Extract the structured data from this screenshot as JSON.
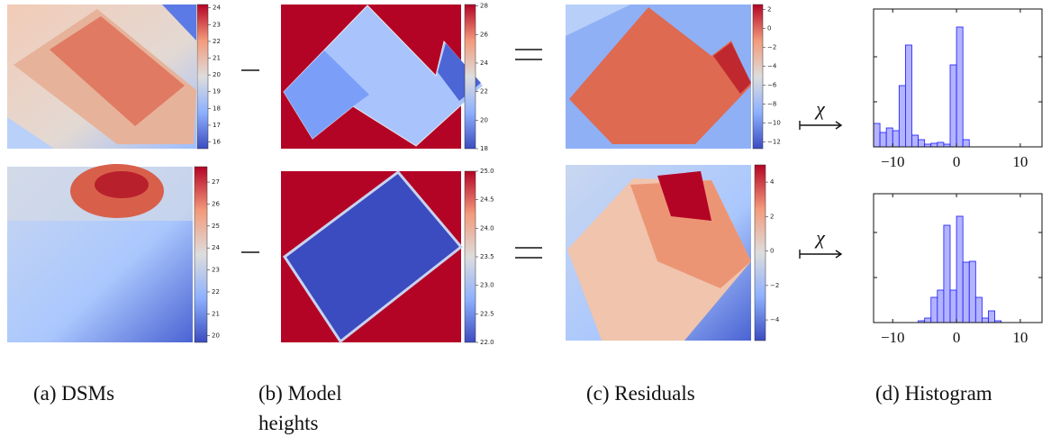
{
  "rows": [
    {
      "dsm_colorbar": {
        "lim": [
          15.6,
          24.2
        ],
        "ticks": [
          16,
          17,
          18,
          19,
          20,
          21,
          22,
          23,
          24
        ]
      },
      "model_colorbar": {
        "lim": [
          18,
          28.1
        ],
        "ticks": [
          18,
          20,
          22,
          24,
          26,
          28
        ]
      },
      "residual_colorbar": {
        "lim": [
          -12.7,
          2.5
        ],
        "ticks": [
          {
            "value": -12,
            "label": "−12"
          },
          {
            "value": -10,
            "label": "−10"
          },
          {
            "value": -8,
            "label": "−8"
          },
          {
            "value": -6,
            "label": "−6"
          },
          {
            "value": -4,
            "label": "−4"
          },
          {
            "value": -2,
            "label": "−2"
          },
          0,
          2
        ]
      },
      "histogram": {
        "type": "histogram",
        "color": "#b3b3ff",
        "edge_color": "#1a1aff",
        "bins": [
          -13,
          -12,
          -11,
          -10,
          -9,
          -8,
          -7,
          -6,
          -5,
          -4,
          -3,
          -2,
          -1,
          0,
          1,
          2
        ],
        "counts": [
          26,
          16,
          21,
          18,
          68,
          113,
          13,
          8,
          3,
          4,
          5,
          3,
          91,
          133,
          8
        ],
        "xlim": [
          -13,
          13.4
        ],
        "ylim": [
          0,
          153
        ],
        "xticks": [
          {
            "value": -10,
            "label": "−10"
          },
          0,
          10
        ],
        "yticks": [
          0,
          50,
          100
        ]
      }
    },
    {
      "dsm_colorbar": {
        "lim": [
          19.7,
          27.7
        ],
        "ticks": [
          20,
          21,
          22,
          23,
          24,
          25,
          26,
          27
        ]
      },
      "model_colorbar": {
        "lim": [
          22,
          25
        ],
        "ticks": [
          {
            "value": 22,
            "label": "22.0"
          },
          22.5,
          {
            "value": 23,
            "label": "23.0"
          },
          23.5,
          {
            "value": 24,
            "label": "24.0"
          },
          24.5,
          {
            "value": 25,
            "label": "25.0"
          }
        ]
      },
      "residual_colorbar": {
        "lim": [
          -5.2,
          5
        ],
        "ticks": [
          {
            "value": -4,
            "label": "−4"
          },
          {
            "value": -2,
            "label": "−2"
          },
          0,
          2,
          4
        ]
      },
      "histogram": {
        "type": "histogram",
        "color": "#b3b3ff",
        "edge_color": "#1a1aff",
        "bins": [
          -6,
          -5,
          -4,
          -3,
          -2,
          -1,
          0,
          1,
          2,
          3,
          4,
          5,
          6,
          7
        ],
        "counts": [
          2,
          5,
          28,
          36,
          108,
          36,
          118,
          67,
          68,
          28,
          5,
          13,
          2
        ],
        "xlim": [
          -13,
          13.4
        ],
        "ylim": [
          0,
          143
        ],
        "xticks": [
          {
            "value": -10,
            "label": "−10"
          },
          0,
          10
        ],
        "yticks": [
          0,
          50,
          100
        ]
      }
    }
  ],
  "map_symbol": "χ",
  "captions": [
    "(a) DSMs",
    "(b) Model heights",
    "(c) Residuals",
    "(d) Histogram"
  ]
}
